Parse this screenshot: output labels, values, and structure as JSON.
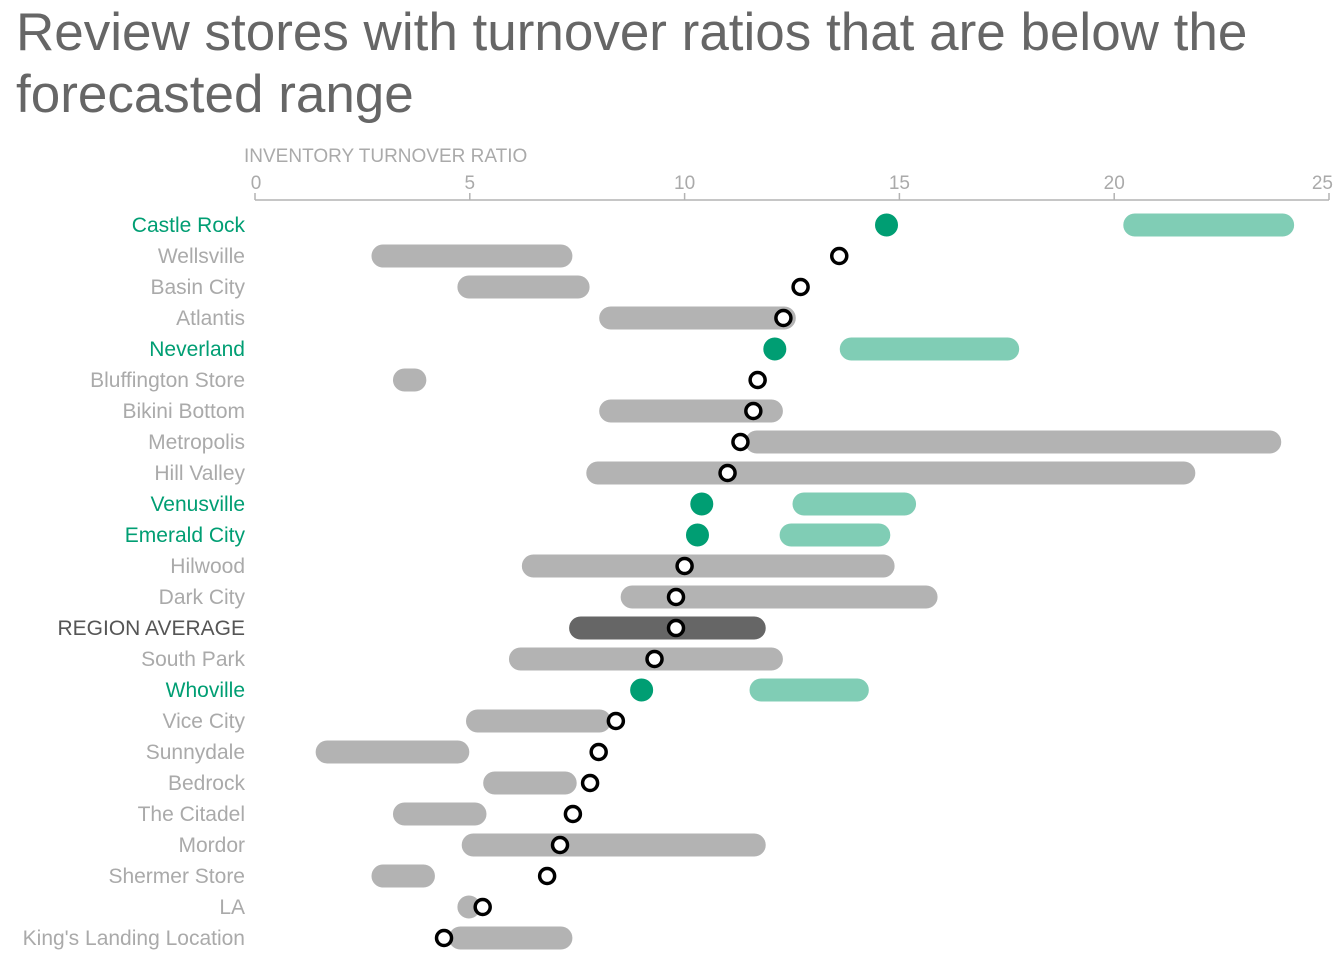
{
  "title": "Review stores with turnover ratios that are below the forecasted range",
  "chart_data": {
    "type": "dot-range",
    "axis_title": "INVENTORY TURNOVER RATIO",
    "xlim": [
      0,
      25
    ],
    "xticks": [
      0,
      5,
      10,
      15,
      20,
      25
    ],
    "colors": {
      "below_range": "#009e73",
      "below_range_band": "#80cdb5",
      "normal_band": "#b3b3b3",
      "average_band": "#666666",
      "normal_label": "#aaaaaa",
      "average_label": "#555555"
    },
    "rows": [
      {
        "name": "Castle Rock",
        "value": 14.7,
        "range": [
          20.2,
          24.2
        ],
        "status": "below"
      },
      {
        "name": "Wellsville",
        "value": 13.6,
        "range": [
          2.7,
          7.4
        ],
        "status": "normal"
      },
      {
        "name": "Basin City",
        "value": 12.7,
        "range": [
          4.7,
          7.8
        ],
        "status": "normal"
      },
      {
        "name": "Atlantis",
        "value": 12.3,
        "range": [
          8.0,
          12.6
        ],
        "status": "normal"
      },
      {
        "name": "Neverland",
        "value": 12.1,
        "range": [
          13.6,
          17.8
        ],
        "status": "below"
      },
      {
        "name": "Bluffington Store",
        "value": 11.7,
        "range": [
          3.2,
          4.0
        ],
        "status": "normal"
      },
      {
        "name": "Bikini Bottom",
        "value": 11.6,
        "range": [
          8.0,
          12.3
        ],
        "status": "normal"
      },
      {
        "name": "Metropolis",
        "value": 11.3,
        "range": [
          11.4,
          23.9
        ],
        "status": "normal"
      },
      {
        "name": "Hill Valley",
        "value": 11.0,
        "range": [
          7.7,
          21.9
        ],
        "status": "normal"
      },
      {
        "name": "Venusville",
        "value": 10.4,
        "range": [
          12.5,
          15.4
        ],
        "status": "below"
      },
      {
        "name": "Emerald City",
        "value": 10.3,
        "range": [
          12.2,
          14.8
        ],
        "status": "below"
      },
      {
        "name": "Hilwood",
        "value": 10.0,
        "range": [
          6.2,
          14.9
        ],
        "status": "normal"
      },
      {
        "name": "Dark City",
        "value": 9.8,
        "range": [
          8.5,
          15.9
        ],
        "status": "normal"
      },
      {
        "name": "REGION AVERAGE",
        "value": 9.8,
        "range": [
          7.3,
          11.9
        ],
        "status": "average"
      },
      {
        "name": "South Park",
        "value": 9.3,
        "range": [
          5.9,
          12.3
        ],
        "status": "normal"
      },
      {
        "name": "Whoville",
        "value": 9.0,
        "range": [
          11.5,
          14.3
        ],
        "status": "below"
      },
      {
        "name": "Vice City",
        "value": 8.4,
        "range": [
          4.9,
          8.3
        ],
        "status": "normal"
      },
      {
        "name": "Sunnydale",
        "value": 8.0,
        "range": [
          1.4,
          5.0
        ],
        "status": "normal"
      },
      {
        "name": "Bedrock",
        "value": 7.8,
        "range": [
          5.3,
          7.5
        ],
        "status": "normal"
      },
      {
        "name": "The Citadel",
        "value": 7.4,
        "range": [
          3.2,
          5.4
        ],
        "status": "normal"
      },
      {
        "name": "Mordor",
        "value": 7.1,
        "range": [
          4.8,
          11.9
        ],
        "status": "normal"
      },
      {
        "name": "Shermer Store",
        "value": 6.8,
        "range": [
          2.7,
          4.2
        ],
        "status": "normal"
      },
      {
        "name": "LA",
        "value": 5.3,
        "range": [
          4.7,
          5.1
        ],
        "status": "normal"
      },
      {
        "name": "King's Landing Location",
        "value": 4.4,
        "range": [
          4.5,
          7.4
        ],
        "status": "normal"
      }
    ]
  }
}
